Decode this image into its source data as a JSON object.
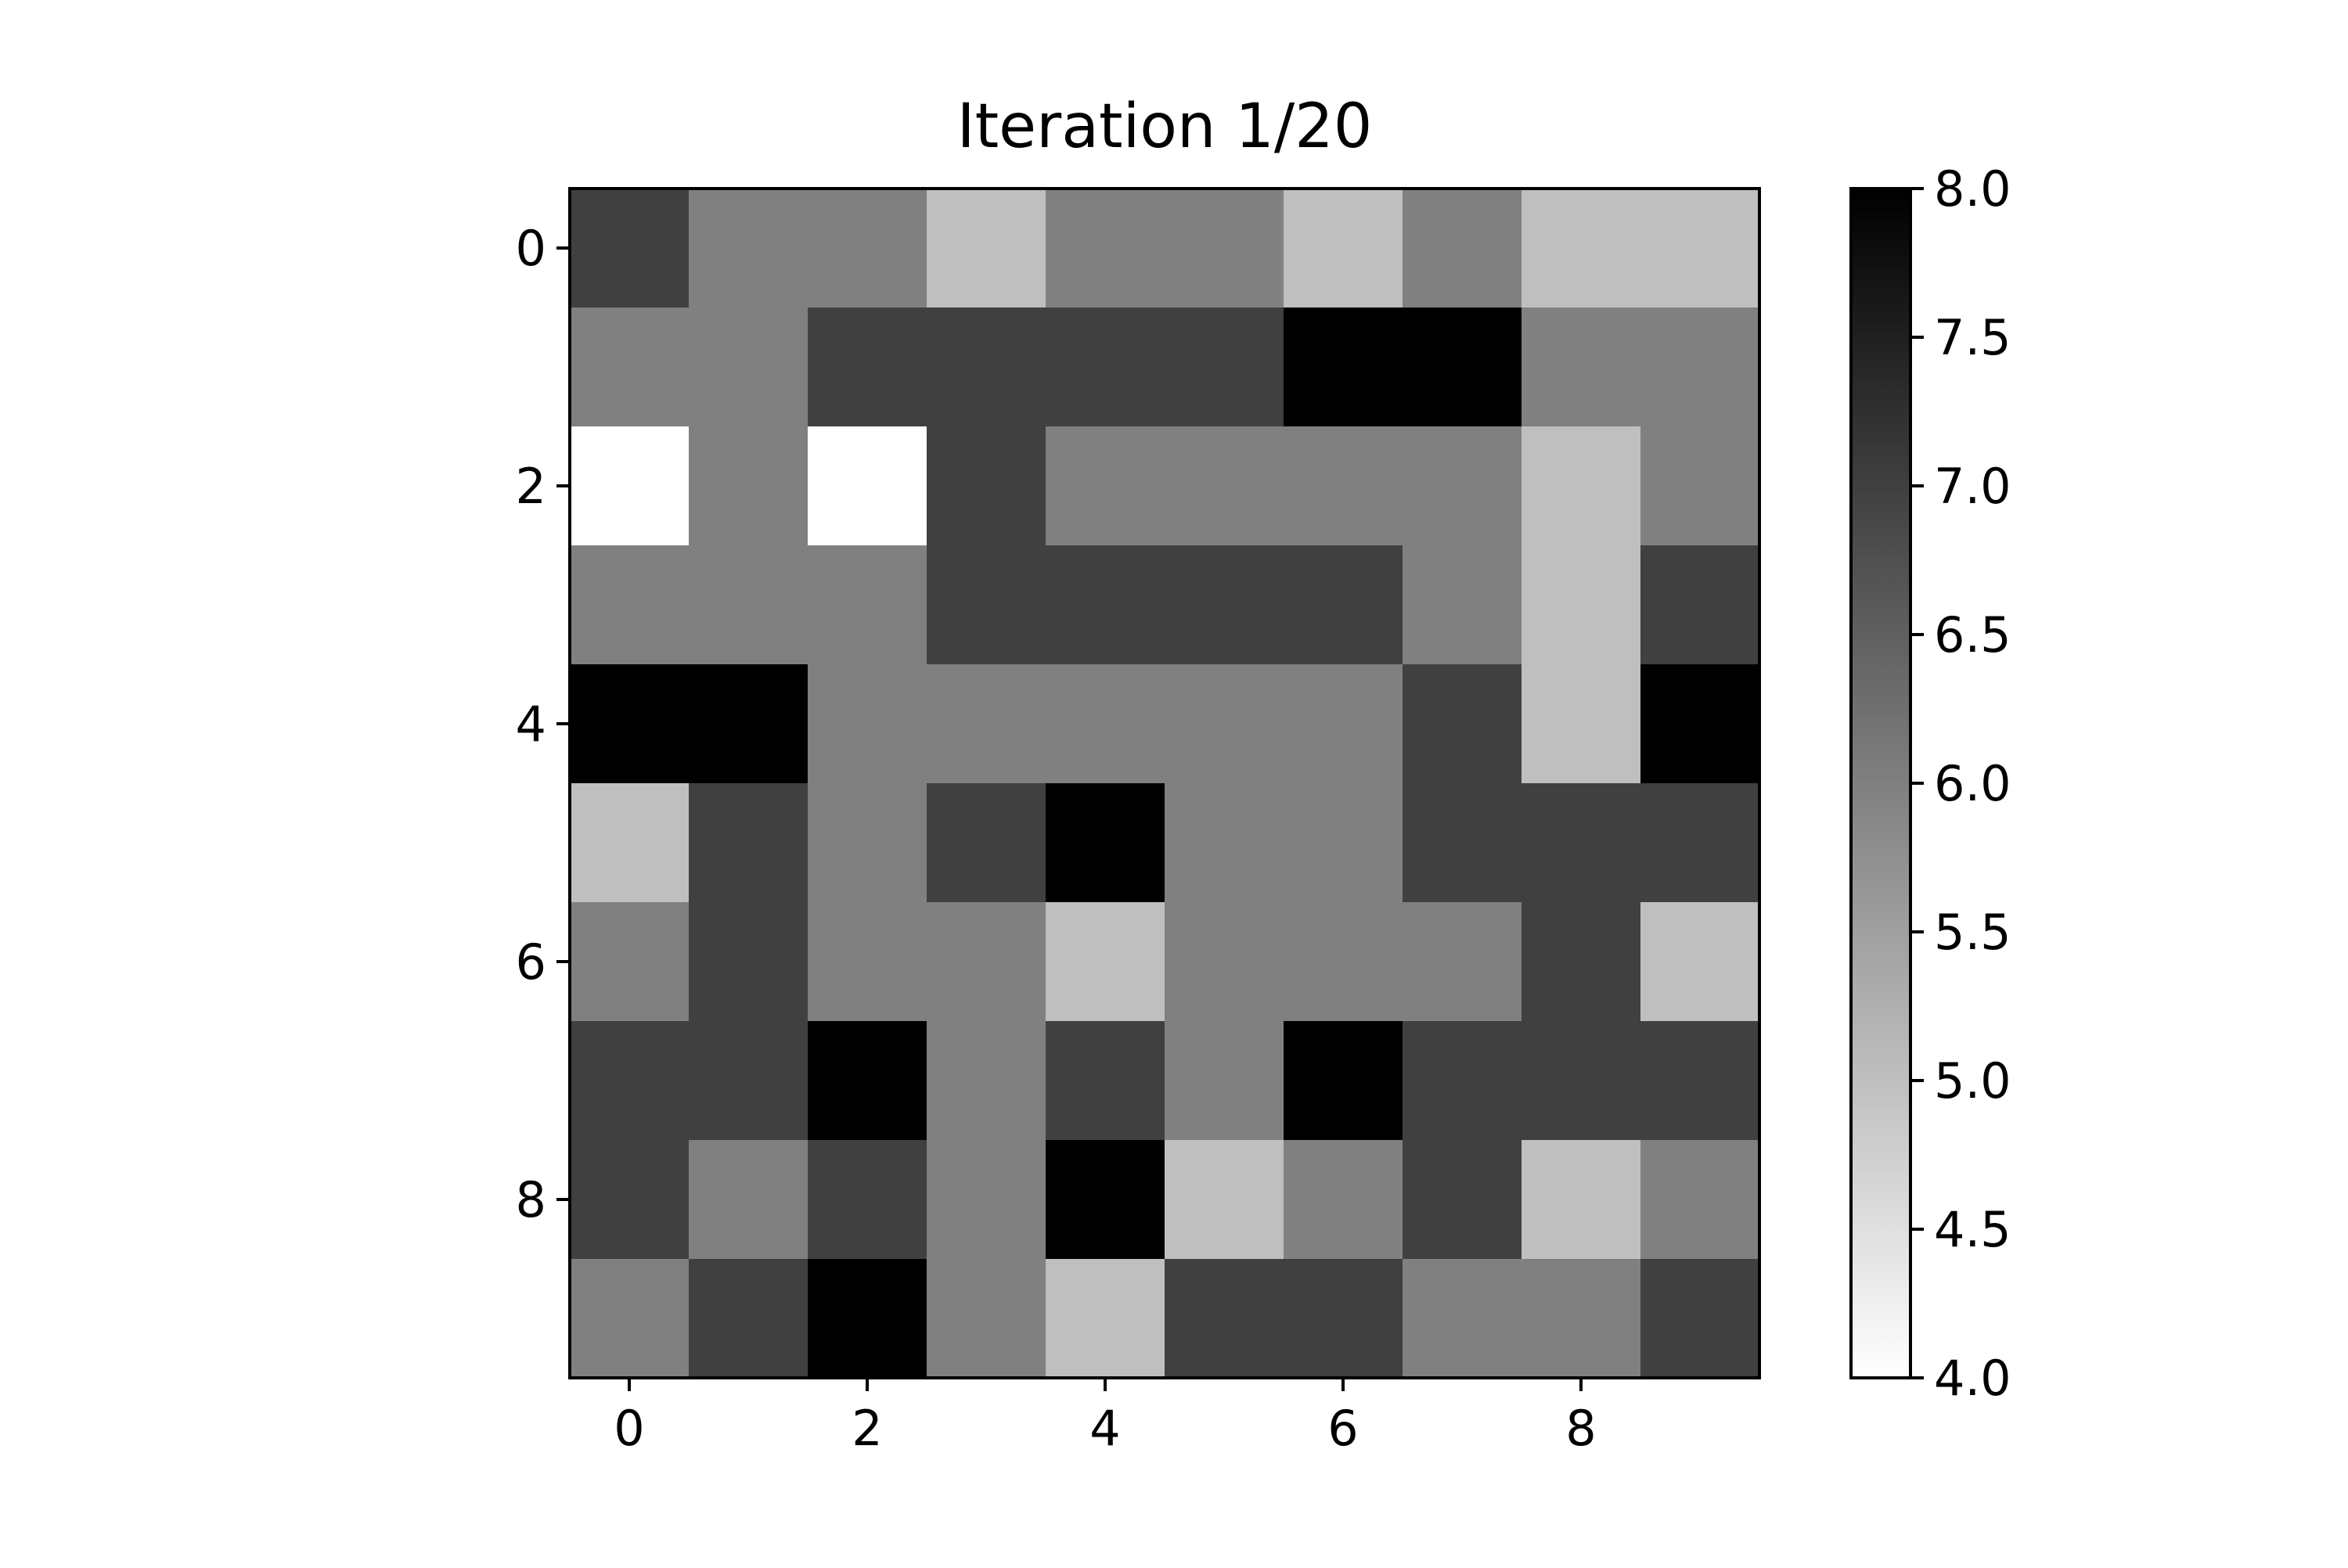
{
  "chart_data": {
    "type": "heatmap",
    "title": "Iteration 1/20",
    "xlabel": "",
    "ylabel": "",
    "x_ticks": [
      0,
      2,
      4,
      6,
      8
    ],
    "y_ticks": [
      0,
      2,
      4,
      6,
      8
    ],
    "colormap": "gray_r",
    "vmin": 4.0,
    "vmax": 8.0,
    "colorbar_ticks": [
      "8.0",
      "7.5",
      "7.0",
      "6.5",
      "6.0",
      "5.5",
      "5.0",
      "4.5",
      "4.0"
    ],
    "grid": false,
    "values": [
      [
        7,
        6,
        6,
        5,
        6,
        6,
        5,
        6,
        5,
        5
      ],
      [
        6,
        6,
        7,
        7,
        7,
        7,
        8,
        8,
        6,
        6
      ],
      [
        4,
        6,
        4,
        7,
        6,
        6,
        6,
        6,
        5,
        6
      ],
      [
        6,
        6,
        6,
        7,
        7,
        7,
        7,
        6,
        5,
        7
      ],
      [
        8,
        8,
        6,
        6,
        6,
        6,
        6,
        7,
        5,
        8
      ],
      [
        5,
        7,
        6,
        7,
        8,
        6,
        6,
        7,
        7,
        7
      ],
      [
        6,
        7,
        6,
        6,
        5,
        6,
        6,
        6,
        7,
        5
      ],
      [
        7,
        7,
        8,
        6,
        7,
        6,
        8,
        7,
        7,
        7
      ],
      [
        7,
        6,
        7,
        6,
        8,
        5,
        6,
        7,
        5,
        6
      ],
      [
        6,
        7,
        8,
        6,
        5,
        7,
        7,
        6,
        6,
        7
      ]
    ]
  }
}
